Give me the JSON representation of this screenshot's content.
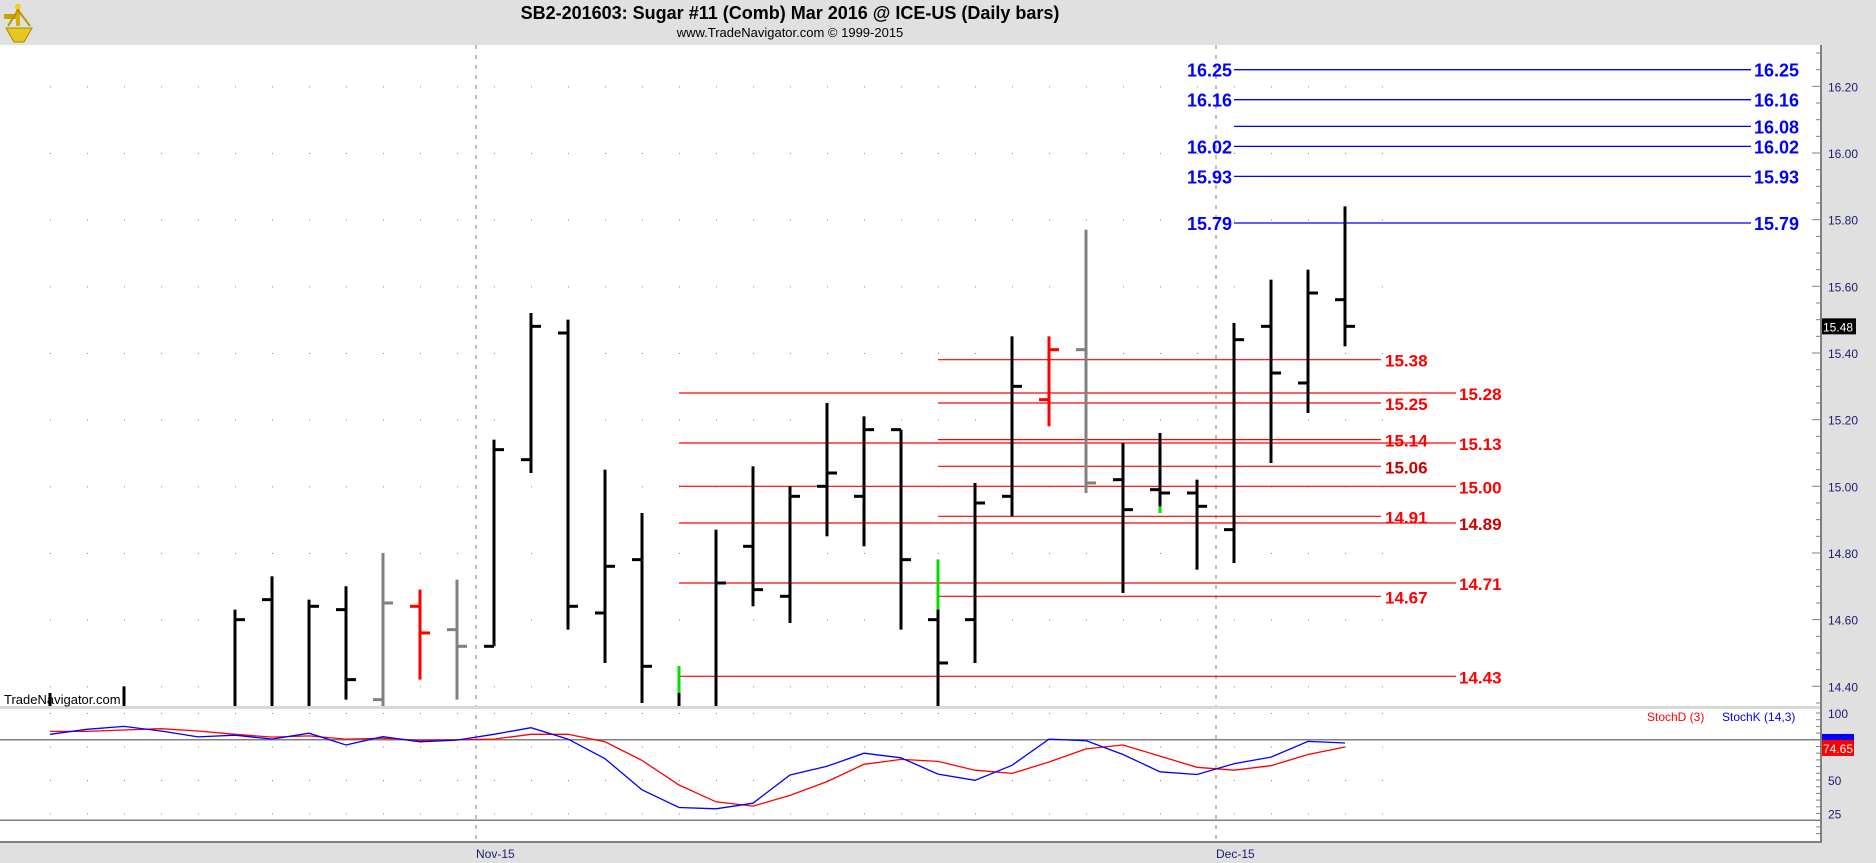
{
  "header": {
    "title": "SB2-201603:  Sugar #11 (Comb) Mar 2016 @ ICE-US  (Daily bars)",
    "subtitle": "www.TradeNavigator.com © 1999-2015"
  },
  "watermark": "TradeNavigator.com",
  "colors": {
    "bar": "#000000",
    "gray": "#808080",
    "red": "#ff0000",
    "green": "#00e000",
    "blue": "#0000ff",
    "axis_text": "#1c1c70"
  },
  "chart_data": {
    "type": "ohlc",
    "title": "SB2-201603:  Sugar #11 (Comb) Mar 2016 @ ICE-US  (Daily bars)",
    "bar_count": 36,
    "price_axis": {
      "ticks": [
        "16.20",
        "16.00",
        "15.80",
        "15.60",
        "15.40",
        "15.20",
        "15.00",
        "14.80",
        "14.60",
        "14.40"
      ],
      "range": [
        14.34,
        16.32
      ],
      "grid": "dotted"
    },
    "last_price": "15.48",
    "x_labels": [
      {
        "label": "Nov-15",
        "after_bar": 11
      },
      {
        "label": "Dec-15",
        "after_bar": 31
      }
    ],
    "bars": [
      {
        "i": 0,
        "h": 14.38,
        "l": 14.2,
        "o": null,
        "c": null,
        "color": "bar"
      },
      {
        "i": 2,
        "h": 14.4,
        "l": 14.2,
        "o": null,
        "c": null,
        "color": "bar"
      },
      {
        "i": 5,
        "h": 14.63,
        "l": 14.2,
        "o": null,
        "c": 14.6,
        "color": "bar"
      },
      {
        "i": 6,
        "h": 14.73,
        "l": 14.2,
        "o": 14.66,
        "c": null,
        "color": "bar"
      },
      {
        "i": 7,
        "h": 14.66,
        "l": 14.2,
        "o": null,
        "c": 14.64,
        "color": "bar"
      },
      {
        "i": 8,
        "h": 14.7,
        "l": 14.36,
        "o": 14.63,
        "c": 14.42,
        "color": "bar"
      },
      {
        "i": 9,
        "h": 14.8,
        "l": 14.34,
        "o": 14.36,
        "c": 14.65,
        "color": "gray"
      },
      {
        "i": 10,
        "h": 14.69,
        "l": 14.42,
        "o": 14.64,
        "c": 14.56,
        "color": "red"
      },
      {
        "i": 11,
        "h": 14.72,
        "l": 14.36,
        "o": 14.57,
        "c": 14.52,
        "color": "gray"
      },
      {
        "i": 12,
        "h": 15.14,
        "l": 14.52,
        "o": 14.52,
        "c": 15.11,
        "color": "bar"
      },
      {
        "i": 13,
        "h": 15.52,
        "l": 15.04,
        "o": 15.08,
        "c": 15.48,
        "color": "bar"
      },
      {
        "i": 14,
        "h": 15.5,
        "l": 14.57,
        "o": 15.46,
        "c": 14.64,
        "color": "bar"
      },
      {
        "i": 15,
        "h": 15.05,
        "l": 14.47,
        "o": 14.62,
        "c": 14.76,
        "color": "bar"
      },
      {
        "i": 16,
        "h": 14.92,
        "l": 14.35,
        "o": 14.78,
        "c": 14.46,
        "color": "bar"
      },
      {
        "i": 17,
        "h": 14.46,
        "l": 14.2,
        "o": null,
        "c": null,
        "color": "bar",
        "green": [
          14.38,
          14.46
        ]
      },
      {
        "i": 18,
        "h": 14.87,
        "l": 14.2,
        "o": null,
        "c": 14.71,
        "color": "bar"
      },
      {
        "i": 19,
        "h": 15.06,
        "l": 14.64,
        "o": 14.82,
        "c": 14.69,
        "color": "bar"
      },
      {
        "i": 20,
        "h": 15.0,
        "l": 14.59,
        "o": 14.67,
        "c": 14.97,
        "color": "bar"
      },
      {
        "i": 21,
        "h": 15.25,
        "l": 14.85,
        "o": 15.0,
        "c": 15.04,
        "color": "bar"
      },
      {
        "i": 22,
        "h": 15.21,
        "l": 14.82,
        "o": 14.97,
        "c": 15.17,
        "color": "bar"
      },
      {
        "i": 23,
        "h": 15.17,
        "l": 14.57,
        "o": 15.17,
        "c": 14.78,
        "color": "bar"
      },
      {
        "i": 24,
        "h": 14.78,
        "l": 14.2,
        "o": 14.6,
        "c": 14.47,
        "color": "bar",
        "green": [
          14.63,
          14.78
        ]
      },
      {
        "i": 25,
        "h": 15.01,
        "l": 14.47,
        "o": 14.6,
        "c": 14.95,
        "color": "bar"
      },
      {
        "i": 26,
        "h": 15.45,
        "l": 14.91,
        "o": 14.97,
        "c": 15.3,
        "color": "bar"
      },
      {
        "i": 27,
        "h": 15.45,
        "l": 15.18,
        "o": 15.26,
        "c": 15.41,
        "color": "red"
      },
      {
        "i": 28,
        "h": 15.77,
        "l": 14.98,
        "o": 15.41,
        "c": 15.01,
        "color": "gray"
      },
      {
        "i": 29,
        "h": 15.13,
        "l": 14.68,
        "o": 15.02,
        "c": 14.93,
        "color": "bar"
      },
      {
        "i": 30,
        "h": 15.16,
        "l": 14.92,
        "o": 14.99,
        "c": 14.98,
        "color": "bar",
        "green": [
          14.92,
          14.94
        ]
      },
      {
        "i": 31,
        "h": 15.02,
        "l": 14.75,
        "o": 14.98,
        "c": 14.94,
        "color": "bar"
      },
      {
        "i": 32,
        "h": 15.49,
        "l": 14.77,
        "o": 14.87,
        "c": 15.44,
        "color": "bar"
      },
      {
        "i": 33,
        "h": 15.62,
        "l": 15.07,
        "o": 15.48,
        "c": 15.34,
        "color": "bar"
      },
      {
        "i": 34,
        "h": 15.65,
        "l": 15.22,
        "o": 15.31,
        "c": 15.58,
        "color": "bar"
      },
      {
        "i": 35,
        "h": 15.84,
        "l": 15.42,
        "o": 15.56,
        "c": 15.48,
        "color": "bar"
      }
    ],
    "blue_levels": [
      {
        "value": "16.25",
        "left_label": true
      },
      {
        "value": "16.16",
        "left_label": true
      },
      {
        "value": "16.08",
        "left_label": false
      },
      {
        "value": "16.02",
        "left_label": true
      },
      {
        "value": "15.93",
        "left_label": true
      },
      {
        "value": "15.79",
        "left_label": true
      }
    ],
    "red_levels_short": [
      {
        "value": "15.38",
        "color": "#ff0000"
      },
      {
        "value": "15.25",
        "color": "#ff0000"
      },
      {
        "value": "15.14",
        "color": "#ff0000"
      },
      {
        "value": "15.06",
        "color": "#cc0000"
      },
      {
        "value": "14.91",
        "color": "#ff0000"
      },
      {
        "value": "14.67",
        "color": "#ff0000"
      }
    ],
    "red_levels_long": [
      {
        "value": "15.28",
        "color": "#ff0000"
      },
      {
        "value": "15.13",
        "color": "#ff0000"
      },
      {
        "value": "15.00",
        "color": "#ff0000"
      },
      {
        "value": "14.89",
        "color": "#cc0000"
      },
      {
        "value": "14.71",
        "color": "#ff0000"
      },
      {
        "value": "14.43",
        "color": "#ff0000"
      }
    ],
    "stochastic": {
      "d_label": "StochD (3)",
      "k_label": "StochK (14,3)",
      "ticks": [
        "100",
        "50",
        "25"
      ],
      "upper": 80,
      "lower": 20,
      "d_last": "74.65",
      "K": [
        84.1,
        87.8,
        90,
        86.6,
        82.2,
        83.4,
        80.5,
        84.9,
        76.1,
        82.4,
        78.5,
        79.8,
        84.1,
        89,
        80.5,
        65.9,
        42.7,
        29.5,
        28.5,
        32.7,
        53.7,
        60.2,
        70,
        66.6,
        54.4,
        49.8,
        61,
        80.5,
        79.3,
        69,
        56.1,
        54.1,
        62.2,
        67.1,
        78.8,
        77.6
      ],
      "D": [
        86.3,
        86.3,
        87.3,
        88.3,
        86.6,
        84.1,
        82,
        82.9,
        80.5,
        81.2,
        79.5,
        80,
        80.5,
        84.1,
        84.1,
        78.5,
        64.6,
        46.3,
        33.7,
        30.5,
        38.5,
        48.8,
        61.7,
        65.4,
        63.9,
        57.3,
        54.9,
        63.4,
        73.2,
        76.1,
        67.8,
        59.5,
        57.3,
        60.7,
        69,
        74.65
      ]
    }
  }
}
